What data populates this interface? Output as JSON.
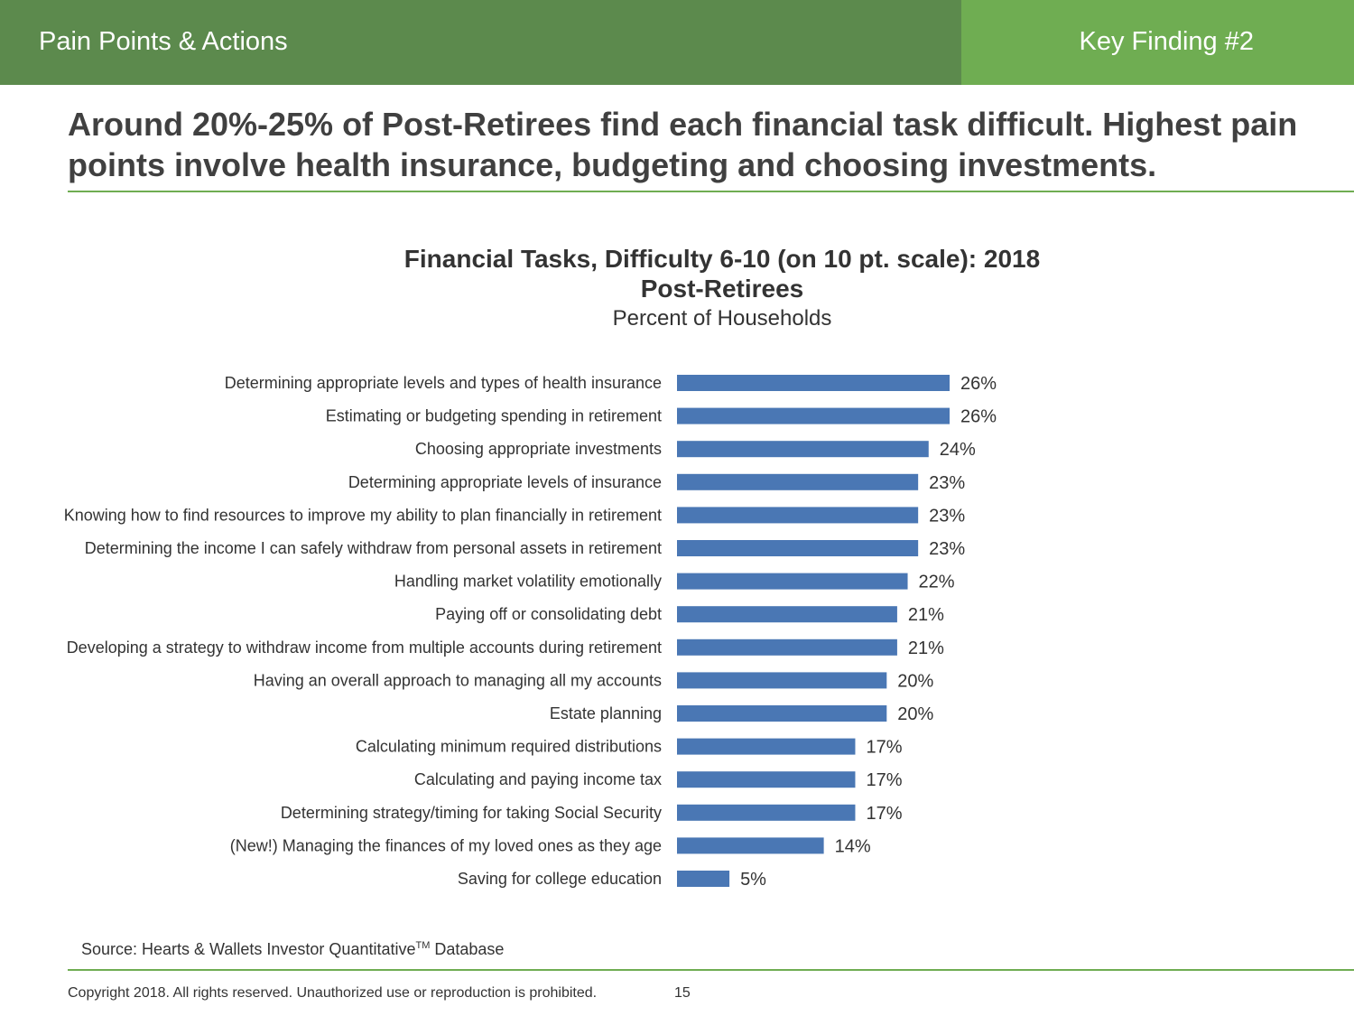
{
  "header": {
    "section_title": "Pain Points & Actions",
    "finding_label": "Key Finding #2",
    "colors": {
      "dark_green": "#5c8a4d",
      "light_green": "#6fad52"
    }
  },
  "headline": "Around 20%-25% of Post-Retirees find each financial task difficult. Highest pain points involve health insurance, budgeting and choosing investments.",
  "chart_data": {
    "type": "bar",
    "orientation": "horizontal",
    "title": "Financial Tasks, Difficulty 6-10 (on 10 pt. scale): 2018",
    "subtitle": "Post-Retirees",
    "unit_label": "Percent of Households",
    "categories": [
      "Determining appropriate levels and types of health insurance",
      "Estimating or budgeting spending in retirement",
      "Choosing appropriate investments",
      "Determining appropriate levels of insurance",
      "Knowing how to find resources to improve my ability to plan financially in retirement",
      "Determining the income I can safely withdraw from personal assets in retirement",
      "Handling market volatility emotionally",
      "Paying off or consolidating debt",
      "Developing a strategy to withdraw income from multiple accounts during retirement",
      "Having an overall approach to managing all my accounts",
      "Estate planning",
      "Calculating minimum required distributions",
      "Calculating and paying income tax",
      "Determining strategy/timing for taking Social Security",
      "(New!) Managing the finances of my loved ones as they age",
      "Saving for college education"
    ],
    "values": [
      26,
      26,
      24,
      23,
      23,
      23,
      22,
      21,
      21,
      20,
      20,
      17,
      17,
      17,
      14,
      5
    ],
    "value_labels": [
      "26%",
      "26%",
      "24%",
      "23%",
      "23%",
      "23%",
      "22%",
      "21%",
      "21%",
      "20%",
      "20%",
      "17%",
      "17%",
      "17%",
      "14%",
      "5%"
    ],
    "xlim": [
      0,
      26
    ],
    "bar_color": "#4a77b4",
    "grid": false,
    "legend": "none"
  },
  "footer": {
    "source_prefix": "Source: Hearts & Wallets Investor Quantitative",
    "source_tm": "TM",
    "source_suffix": " Database",
    "copyright": "Copyright 2018. All rights reserved. Unauthorized use or reproduction is prohibited.",
    "page_number": "15"
  }
}
